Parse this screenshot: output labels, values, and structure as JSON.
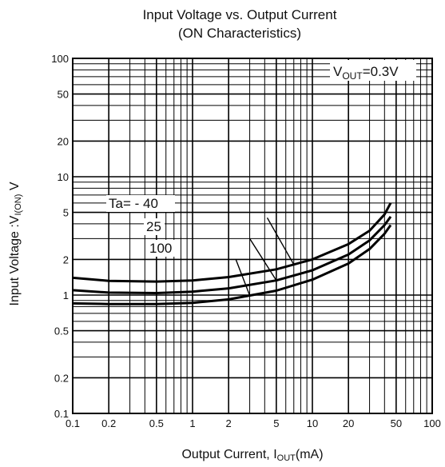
{
  "chart_data": {
    "type": "line",
    "title": "Input Voltage vs. Output Current",
    "subtitle": "(ON Characteristics)",
    "xlabel": {
      "main": "Output Current, I",
      "sub": "OUT",
      "unit": "(mA)"
    },
    "ylabel": {
      "main": "Input Voltage :V",
      "sub": "I(ON)",
      "unit": " V"
    },
    "x_scale": "log",
    "y_scale": "log",
    "xlim": [
      0.1,
      100
    ],
    "ylim": [
      0.1,
      100
    ],
    "grid": true,
    "x_ticks": [
      0.1,
      0.2,
      0.5,
      1,
      2,
      5,
      10,
      20,
      50,
      100
    ],
    "x_tick_labels": [
      "0.1",
      "0.2",
      "0.5",
      "1",
      "2",
      "5",
      "10",
      "20",
      "50",
      "100"
    ],
    "y_ticks": [
      0.1,
      0.2,
      0.5,
      1,
      2,
      5,
      10,
      20,
      50,
      100
    ],
    "y_tick_labels": [
      "0.1",
      "0.2",
      "0.5",
      "1",
      "2",
      "5",
      "10",
      "20",
      "50",
      "100"
    ],
    "condition": {
      "main": "V",
      "sub": "OUT",
      "value": "=0.3V"
    },
    "series": [
      {
        "name": "Ta= - 40",
        "x": [
          0.1,
          0.2,
          0.5,
          1,
          2,
          5,
          10,
          20,
          30,
          40,
          45
        ],
        "y": [
          1.4,
          1.32,
          1.3,
          1.33,
          1.42,
          1.65,
          2.0,
          2.7,
          3.5,
          4.8,
          6.0
        ]
      },
      {
        "name": "25",
        "x": [
          0.1,
          0.2,
          0.5,
          1,
          2,
          5,
          10,
          20,
          30,
          40,
          45
        ],
        "y": [
          1.1,
          1.05,
          1.04,
          1.07,
          1.14,
          1.33,
          1.62,
          2.2,
          2.9,
          3.9,
          4.6
        ]
      },
      {
        "name": "100",
        "x": [
          0.1,
          0.2,
          0.5,
          1,
          2,
          5,
          10,
          20,
          30,
          40,
          45
        ],
        "y": [
          0.85,
          0.84,
          0.84,
          0.86,
          0.92,
          1.09,
          1.35,
          1.85,
          2.45,
          3.3,
          3.9
        ]
      }
    ]
  }
}
